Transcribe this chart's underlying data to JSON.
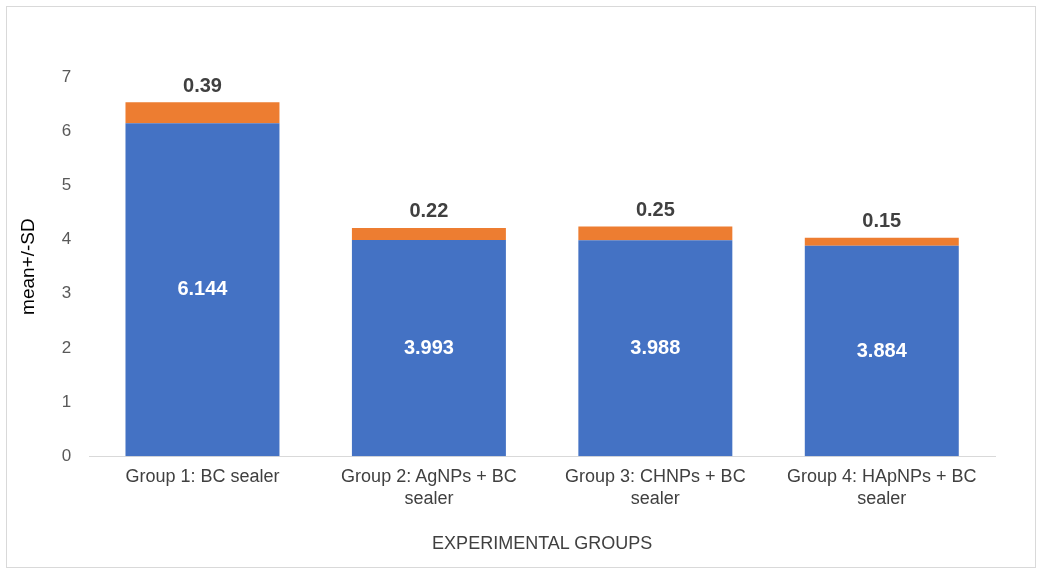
{
  "chart_data": {
    "type": "bar",
    "stacked": true,
    "xlabel": "EXPERIMENTAL GROUPS",
    "ylabel": "mean+/-SD",
    "categories": [
      "Group 1: BC sealer",
      "Group 2: AgNPs + BC sealer",
      "Group 3: CHNPs + BC sealer",
      "Group 4: HApNPs + BC sealer"
    ],
    "series": [
      {
        "color": "#4472c4",
        "values": [
          6.144,
          3.993,
          3.988,
          3.884
        ]
      },
      {
        "color": "#ed7d31",
        "values": [
          0.39,
          0.22,
          0.25,
          0.15
        ]
      }
    ],
    "ylim": [
      0,
      7
    ],
    "yticks": [
      0,
      1,
      2,
      3,
      4,
      5,
      6,
      7
    ],
    "grid": false,
    "legend": false,
    "data_labels": true
  }
}
